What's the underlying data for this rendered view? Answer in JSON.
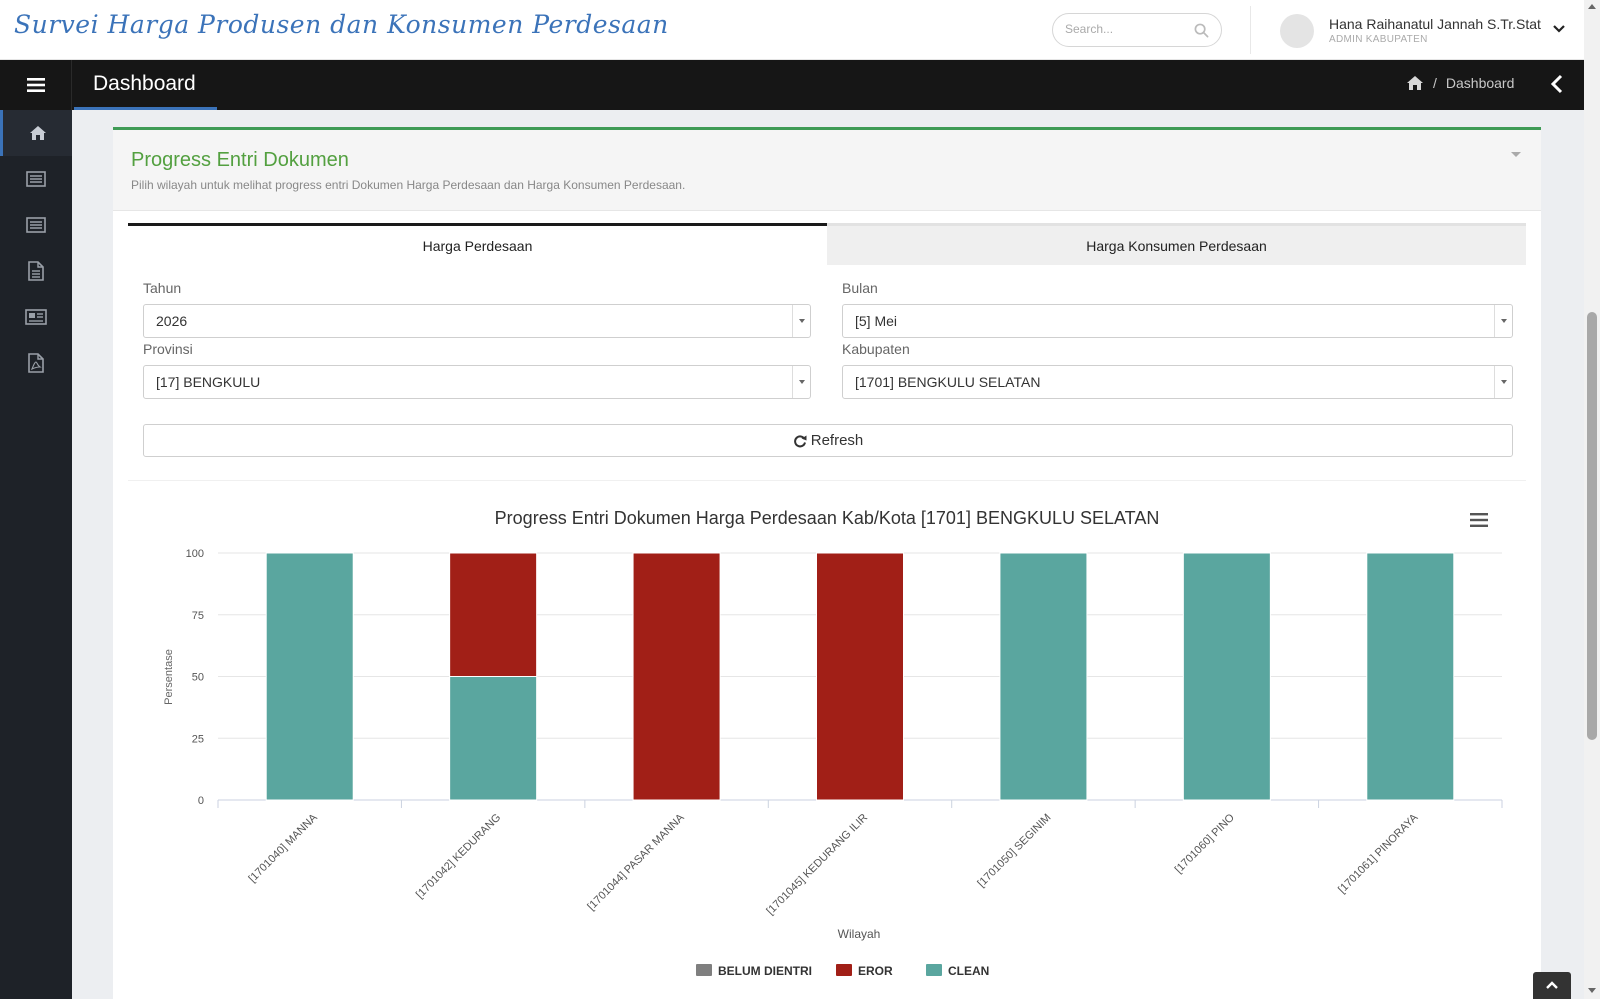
{
  "header": {
    "app_title": "Survei Harga Produsen dan Konsumen Perdesaan",
    "search_placeholder": "Search...",
    "user_name": "Hana Raihanatul Jannah S.Tr.Stat",
    "user_role": "ADMIN KABUPATEN"
  },
  "toolbar": {
    "page_title": "Dashboard",
    "breadcrumb": "Dashboard",
    "breadcrumb_separator": "/"
  },
  "sidebar": {
    "items": [
      {
        "icon": "home-icon",
        "active": true
      },
      {
        "icon": "list-icon",
        "active": false
      },
      {
        "icon": "list-icon",
        "active": false
      },
      {
        "icon": "document-icon",
        "active": false
      },
      {
        "icon": "newspaper-icon",
        "active": false
      },
      {
        "icon": "pdf-icon",
        "active": false
      }
    ]
  },
  "panel": {
    "title": "Progress Entri Dokumen",
    "subtitle": "Pilih wilayah untuk melihat progress entri Dokumen Harga Perdesaan dan Harga Konsumen Perdesaan.",
    "tabs": [
      "Harga Perdesaan",
      "Harga Konsumen Perdesaan"
    ],
    "active_tab": 0,
    "form": {
      "tahun_label": "Tahun",
      "tahun_value": "2026",
      "bulan_label": "Bulan",
      "bulan_value": "[5] Mei",
      "provinsi_label": "Provinsi",
      "provinsi_value": "[17] BENGKULU",
      "kabupaten_label": "Kabupaten",
      "kabupaten_value": "[1701] BENGKULU SELATAN"
    },
    "refresh_label": "Refresh"
  },
  "colors": {
    "accent": "#3b73b9",
    "panel_border": "#3f9b56",
    "belum": "#7f7f7f",
    "eror": "#a11f17",
    "clean": "#5aa69f"
  },
  "chart_data": {
    "type": "bar",
    "stacked": true,
    "title": "Progress Entri Dokumen Harga Perdesaan Kab/Kota [1701] BENGKULU SELATAN",
    "xlabel": "Wilayah",
    "ylabel": "Persentase",
    "ylim": [
      0,
      100
    ],
    "yticks": [
      0,
      25,
      50,
      75,
      100
    ],
    "categories": [
      "[1701040] MANNA",
      "[1701042] KEDURANG",
      "[1701044] PASAR MANNA",
      "[1701045] KEDURANG ILIR",
      "[1701050] SEGINIM",
      "[1701060] PINO",
      "[1701061] PINORAYA"
    ],
    "series": [
      {
        "name": "BELUM DIENTRI",
        "color": "#7f7f7f",
        "values": [
          0,
          0,
          0,
          0,
          0,
          0,
          0
        ]
      },
      {
        "name": "EROR",
        "color": "#a11f17",
        "values": [
          0,
          50,
          100,
          100,
          0,
          0,
          0
        ]
      },
      {
        "name": "CLEAN",
        "color": "#5aa69f",
        "values": [
          100,
          50,
          0,
          0,
          100,
          100,
          100
        ]
      }
    ],
    "legend_position": "bottom-center",
    "grid": true
  }
}
